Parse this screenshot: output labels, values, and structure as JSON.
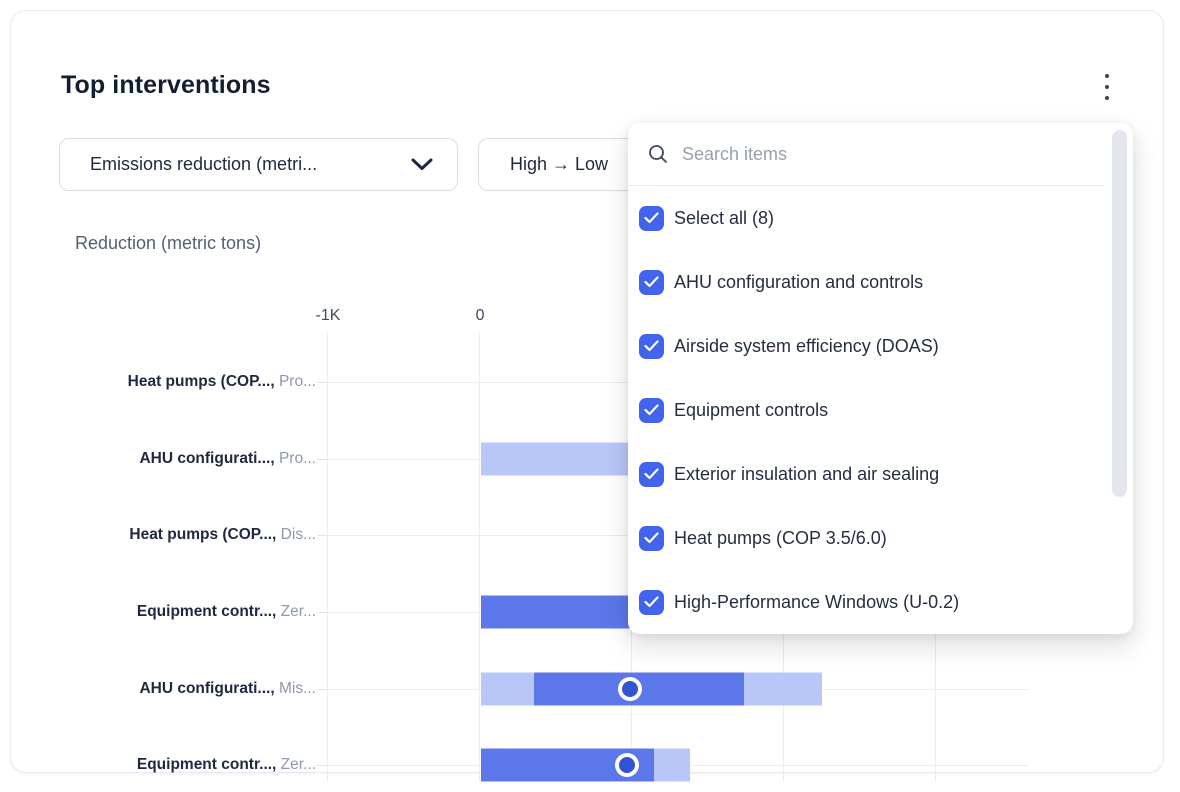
{
  "card": {
    "title": "Top interventions",
    "menu_icon": "kebab-vertical"
  },
  "filters": {
    "metric_label": "Emissions reduction (metri...",
    "sort_label": "High → Low"
  },
  "chart_data": {
    "type": "bar",
    "orientation": "horizontal",
    "title": "Reduction (metric tons)",
    "unit": "metric tons",
    "xlim": [
      -1000,
      3610
    ],
    "grid": true,
    "gridline_values": [
      -1000,
      0,
      1000,
      2000,
      3000
    ],
    "ticks": [
      {
        "value": -1000,
        "label": "-1K"
      },
      {
        "value": 0,
        "label": "0"
      }
    ],
    "rows": [
      {
        "label_bold": "Heat pumps (COP...,",
        "label_gray": "Pro...",
        "segments": [],
        "marker": null
      },
      {
        "label_bold": "AHU configurati...,",
        "label_gray": "Pro...",
        "segments": [
          {
            "from": 15,
            "to": 2050,
            "shade": "light"
          }
        ],
        "marker": null,
        "occluded_by_panel": true
      },
      {
        "label_bold": "Heat pumps (COP...,",
        "label_gray": "Dis...",
        "segments": [],
        "marker": null
      },
      {
        "label_bold": "Equipment contr...,",
        "label_gray": "Zer...",
        "segments": [
          {
            "from": 15,
            "to": 1930,
            "shade": "solid"
          }
        ],
        "marker": null,
        "occluded_by_panel": true
      },
      {
        "label_bold": "AHU configurati...,",
        "label_gray": "Mis...",
        "segments": [
          {
            "from": 15,
            "to": 360,
            "shade": "light"
          },
          {
            "from": 360,
            "to": 1745,
            "shade": "solid"
          },
          {
            "from": 1745,
            "to": 2255,
            "shade": "light"
          }
        ],
        "marker": 990
      },
      {
        "label_bold": "Equipment contr...,",
        "label_gray": "Zer...",
        "segments": [
          {
            "from": 15,
            "to": 1150,
            "shade": "solid"
          },
          {
            "from": 1150,
            "to": 1390,
            "shade": "light"
          }
        ],
        "marker": 975
      }
    ]
  },
  "panel": {
    "search_placeholder": "Search items",
    "items": [
      {
        "label": "Select all (8)",
        "checked": true
      },
      {
        "label": "AHU configuration and controls",
        "checked": true
      },
      {
        "label": "Airside system efficiency (DOAS)",
        "checked": true
      },
      {
        "label": "Equipment controls",
        "checked": true
      },
      {
        "label": "Exterior insulation and air sealing",
        "checked": true
      },
      {
        "label": "Heat pumps (COP 3.5/6.0)",
        "checked": true
      },
      {
        "label": "High-Performance Windows (U-0.2)",
        "checked": true
      }
    ]
  },
  "colors": {
    "accent": "#4263eb",
    "bar_solid": "#5c77e9",
    "bar_light": "#b9c7f8",
    "marker": "#3354d0",
    "title_text": "#141e31",
    "grid": "#ececf2"
  }
}
